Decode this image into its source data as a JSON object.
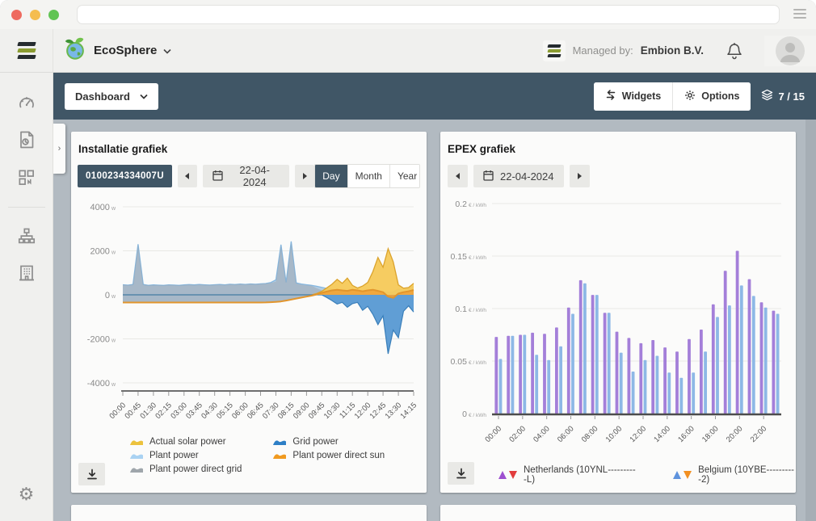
{
  "browser": {
    "url_value": ""
  },
  "header": {
    "app_name": "EcoSphere",
    "managed_by_label": "Managed by:",
    "managed_by_value": "Embion B.V."
  },
  "toolbar": {
    "dashboard_label": "Dashboard",
    "widgets_label": "Widgets",
    "options_label": "Options",
    "counter": "7 / 15"
  },
  "sidebar": {
    "items": [
      "dashboard",
      "reports",
      "widgets",
      "sitemap",
      "buildings",
      "settings"
    ]
  },
  "cards": {
    "installation": {
      "title": "Installatie grafiek",
      "serial": "0100234334007U",
      "date": "22-04-2024",
      "range_tabs": [
        "Day",
        "Month",
        "Year"
      ],
      "selected_tab": "Day"
    },
    "epex": {
      "title": "EPEX grafiek",
      "date": "22-04-2024"
    }
  },
  "chart_data": [
    {
      "type": "area",
      "title": "Installatie grafiek",
      "x_start": "00:00",
      "x_step_minutes": 15,
      "x_ticks": [
        "00:00",
        "00:45",
        "01:30",
        "02:15",
        "03:00",
        "03:45",
        "04:30",
        "05:15",
        "06:00",
        "06:45",
        "07:30",
        "08:15",
        "09:00",
        "09:45",
        "10:30",
        "11:15",
        "12:00",
        "12:45",
        "13:30",
        "14:15"
      ],
      "y_ticks": [
        "4000",
        "2000",
        "0",
        "-2000",
        "-4000"
      ],
      "y_tick_values": [
        4000,
        2000,
        0,
        -2000,
        -4000
      ],
      "y_unit": "w",
      "ylim": [
        -4000,
        4000
      ],
      "grid": true,
      "series": [
        {
          "name": "Plant power",
          "color": "#a9c6df",
          "stroke": "#85b7e0",
          "values": [
            460,
            440,
            470,
            2300,
            470,
            430,
            450,
            440,
            430,
            455,
            445,
            430,
            450,
            465,
            450,
            470,
            455,
            445,
            460,
            470,
            455,
            480,
            465,
            490,
            475,
            495,
            480,
            500,
            515,
            560,
            680,
            2280,
            560,
            2430,
            540,
            490,
            460,
            430,
            390,
            340,
            290,
            240,
            200,
            170,
            150,
            140,
            130,
            140,
            160,
            140,
            130,
            120,
            110,
            130,
            260,
            180,
            300,
            380
          ]
        },
        {
          "name": "Plant power direct grid",
          "color": "#98a0a6",
          "stroke": "#8d959b",
          "values": [
            460,
            440,
            470,
            2300,
            470,
            430,
            450,
            440,
            430,
            455,
            445,
            430,
            450,
            465,
            450,
            470,
            455,
            445,
            460,
            470,
            455,
            480,
            465,
            490,
            475,
            495,
            480,
            500,
            515,
            540,
            600,
            2250,
            540,
            2380,
            520,
            470,
            440,
            410,
            300,
            200,
            100,
            50,
            20,
            20,
            20,
            20,
            20,
            20,
            20,
            20,
            20,
            20,
            20,
            20,
            20,
            20,
            20,
            20
          ]
        },
        {
          "name": "Actual solar power",
          "color": "#f5c959",
          "stroke": "#dba32c",
          "values": [
            0,
            0,
            0,
            0,
            0,
            0,
            0,
            0,
            0,
            0,
            0,
            0,
            0,
            0,
            0,
            0,
            0,
            0,
            0,
            0,
            0,
            0,
            0,
            0,
            0,
            0,
            0,
            0,
            0,
            0,
            0,
            0,
            0,
            0,
            0,
            0,
            0,
            0,
            60,
            160,
            320,
            480,
            700,
            520,
            760,
            430,
            310,
            400,
            560,
            1050,
            1700,
            1250,
            2100,
            1500,
            450,
            300,
            330,
            520
          ]
        },
        {
          "name": "Grid power",
          "color": "#4f94d0",
          "stroke": "#3a7fba",
          "values": [
            0,
            0,
            0,
            0,
            0,
            0,
            0,
            0,
            0,
            0,
            0,
            0,
            0,
            0,
            0,
            0,
            0,
            0,
            0,
            0,
            0,
            0,
            0,
            0,
            0,
            0,
            0,
            0,
            0,
            0,
            0,
            0,
            0,
            0,
            0,
            0,
            0,
            0,
            0,
            0,
            -120,
            -260,
            -420,
            -340,
            -560,
            -400,
            -340,
            -700,
            -520,
            -880,
            -1350,
            -950,
            -2680,
            -1600,
            -1950,
            -750,
            -500,
            -780
          ]
        },
        {
          "name": "Plant power direct sun",
          "color": "#efa43c",
          "stroke": "#e2952c",
          "values": [
            -350,
            -350,
            -350,
            -350,
            -350,
            -350,
            -350,
            -350,
            -350,
            -350,
            -350,
            -350,
            -350,
            -350,
            -350,
            -350,
            -350,
            -350,
            -350,
            -350,
            -350,
            -350,
            -350,
            -350,
            -350,
            -350,
            -350,
            -350,
            -345,
            -335,
            -320,
            -300,
            -260,
            -215,
            -170,
            -125,
            -80,
            -35,
            20,
            90,
            150,
            200,
            230,
            200,
            180,
            230,
            200,
            160,
            200,
            230,
            180,
            120,
            -80,
            -140,
            60,
            120,
            160,
            220
          ]
        }
      ],
      "legend": [
        {
          "label": "Actual solar power",
          "color": "#ecc23d",
          "col": 0
        },
        {
          "label": "Plant power",
          "color": "#a9d2f2",
          "col": 0
        },
        {
          "label": "Plant power direct grid",
          "color": "#9fa6ab",
          "col": 0
        },
        {
          "label": "Grid power",
          "color": "#2e7fc6",
          "col": 1
        },
        {
          "label": "Plant power direct sun",
          "color": "#f09a20",
          "col": 1
        }
      ]
    },
    {
      "type": "bar",
      "title": "EPEX grafiek",
      "categories": [
        "00:00",
        "01:00",
        "02:00",
        "03:00",
        "04:00",
        "05:00",
        "06:00",
        "07:00",
        "08:00",
        "09:00",
        "10:00",
        "11:00",
        "12:00",
        "13:00",
        "14:00",
        "15:00",
        "16:00",
        "17:00",
        "18:00",
        "19:00",
        "20:00",
        "21:00",
        "22:00",
        "23:00"
      ],
      "x_ticks": [
        "00:00",
        "02:00",
        "04:00",
        "06:00",
        "08:00",
        "10:00",
        "12:00",
        "14:00",
        "16:00",
        "18:00",
        "20:00",
        "22:00"
      ],
      "y_ticks": [
        "0.2",
        "0.15",
        "0.1",
        "0.05",
        "0"
      ],
      "y_tick_values": [
        0.2,
        0.15,
        0.1,
        0.05,
        0
      ],
      "y_unit": "€ / kWh",
      "ylim": [
        0,
        0.2
      ],
      "grid": true,
      "series": [
        {
          "name": "Netherlands (10YNL----------L)",
          "color": "#a47fd9",
          "values": [
            0.073,
            0.074,
            0.075,
            0.077,
            0.076,
            0.082,
            0.101,
            0.127,
            0.113,
            0.096,
            0.078,
            0.072,
            0.067,
            0.07,
            0.063,
            0.059,
            0.071,
            0.08,
            0.104,
            0.136,
            0.155,
            0.128,
            0.106,
            0.098
          ]
        },
        {
          "name": "Belgium (10YBE----------2)",
          "color": "#8db8e6",
          "values": [
            0.052,
            0.074,
            0.075,
            0.056,
            0.051,
            0.064,
            0.095,
            0.124,
            0.113,
            0.096,
            0.058,
            0.04,
            0.051,
            0.055,
            0.039,
            0.034,
            0.039,
            0.059,
            0.092,
            0.103,
            0.122,
            0.112,
            0.101,
            0.095
          ]
        }
      ],
      "legend": [
        {
          "label": "Netherlands (10YNL----------L)",
          "up": "#9d4fd0",
          "down": "#e23d3d"
        },
        {
          "label": "Belgium (10YBE----------2)",
          "up": "#5f93dd",
          "down": "#f29021"
        }
      ],
      "legend_position": "bottom"
    }
  ]
}
